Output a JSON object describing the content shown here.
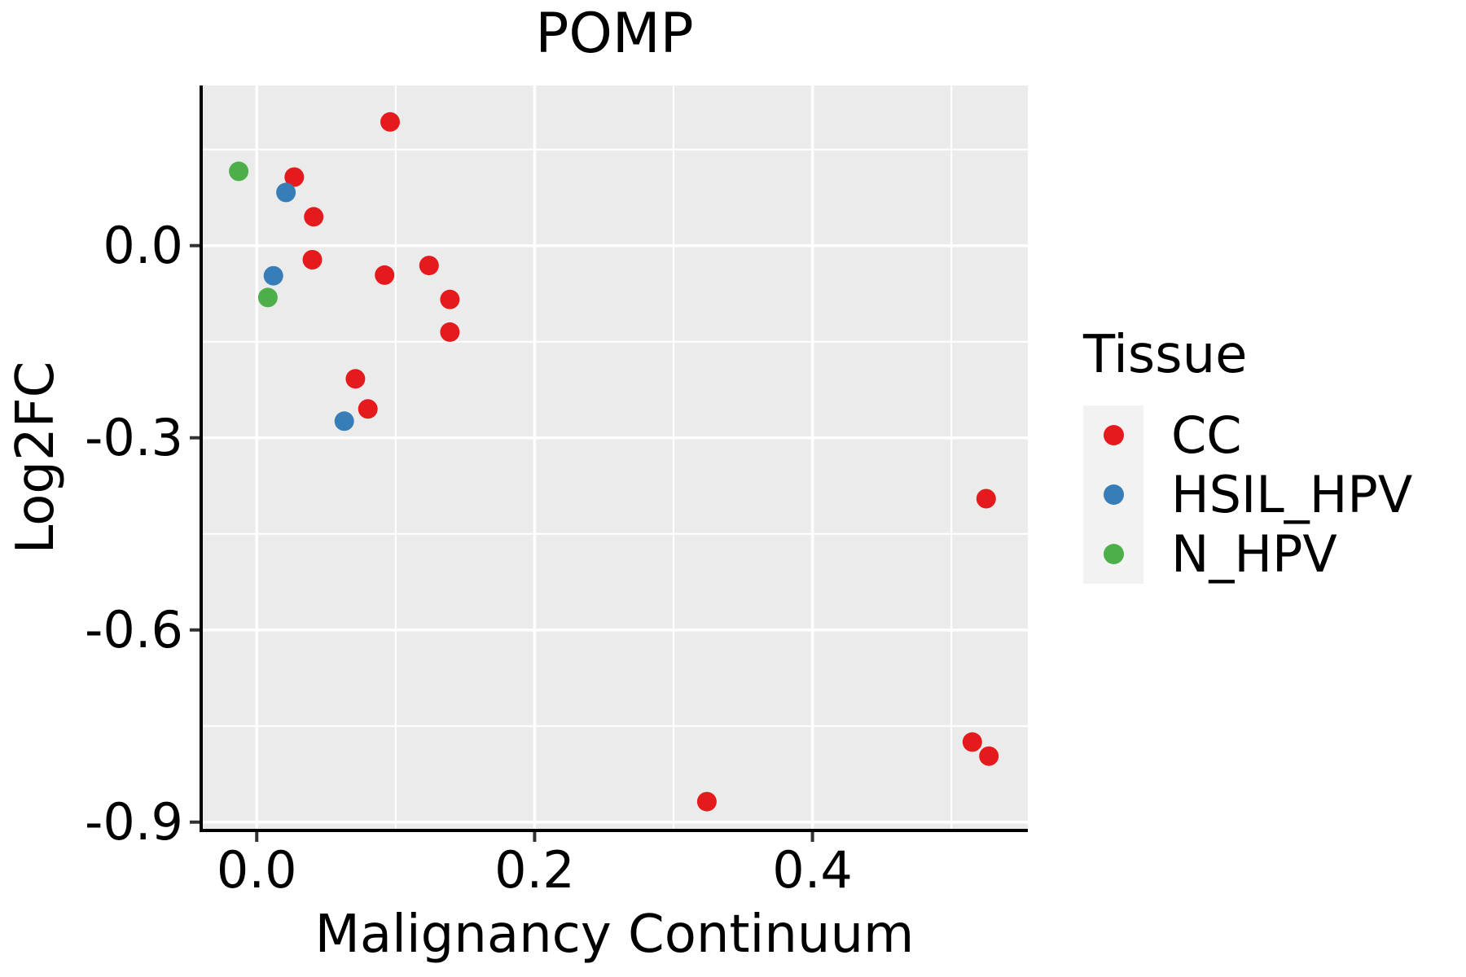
{
  "figure": {
    "title": "POMP"
  },
  "chart_data": {
    "type": "scatter",
    "title": "POMP",
    "xlabel": "Malignancy Continuum",
    "ylabel": "Log2FC",
    "xlim": [
      -0.04,
      0.555
    ],
    "ylim": [
      -0.913,
      0.25
    ],
    "xticks": [
      0.0,
      0.2,
      0.4
    ],
    "yticks": [
      0.0,
      -0.3,
      -0.6,
      -0.9
    ],
    "xticks_minor": [
      0.1,
      0.3,
      0.5
    ],
    "yticks_minor": [
      0.15,
      -0.15,
      -0.45,
      -0.75
    ],
    "grid": true,
    "legend_title": "Tissue",
    "legend_position": "right",
    "series": [
      {
        "name": "CC",
        "color": "#E41A1C",
        "points": [
          [
            0.096,
            0.193
          ],
          [
            0.027,
            0.107
          ],
          [
            0.041,
            0.045
          ],
          [
            0.04,
            -0.022
          ],
          [
            0.092,
            -0.046
          ],
          [
            0.124,
            -0.031
          ],
          [
            0.139,
            -0.084
          ],
          [
            0.139,
            -0.135
          ],
          [
            0.071,
            -0.208
          ],
          [
            0.08,
            -0.255
          ],
          [
            0.525,
            -0.395
          ],
          [
            0.515,
            -0.775
          ],
          [
            0.527,
            -0.797
          ],
          [
            0.324,
            -0.868
          ]
        ]
      },
      {
        "name": "HSIL_HPV",
        "color": "#377EB8",
        "points": [
          [
            0.021,
            0.083
          ],
          [
            0.012,
            -0.047
          ],
          [
            0.063,
            -0.274
          ]
        ]
      },
      {
        "name": "N_HPV",
        "color": "#4DAF4A",
        "points": [
          [
            -0.013,
            0.116
          ],
          [
            0.008,
            -0.081
          ]
        ]
      }
    ]
  },
  "colors": {
    "panel_bg": "#EBEBEB",
    "grid_major": "#FFFFFF",
    "grid_minor": "#FFFFFF",
    "axis_line": "#000000",
    "tick_mark": "#333333",
    "text": "#000000",
    "legend_key_bg": "#F2F2F2",
    "page_bg": "#FFFFFF"
  }
}
